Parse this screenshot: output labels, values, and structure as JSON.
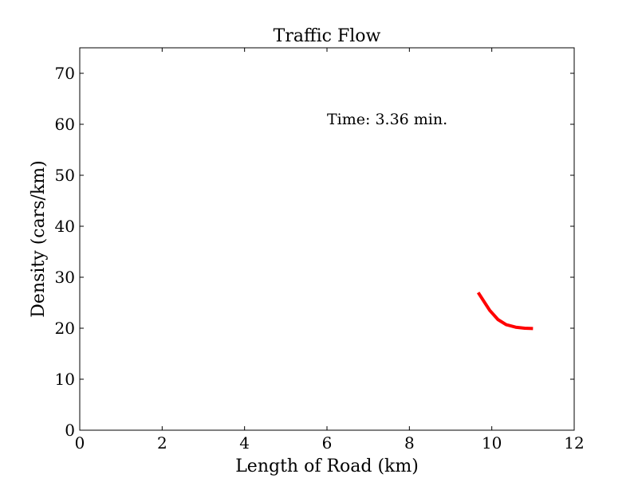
{
  "chart_data": {
    "type": "line",
    "title": "Traffic Flow",
    "xlabel": "Length of Road (km)",
    "ylabel": "Density (cars/km)",
    "xlim": [
      0,
      12
    ],
    "ylim": [
      0,
      75
    ],
    "xticks": [
      0,
      2,
      4,
      6,
      8,
      10,
      12
    ],
    "yticks": [
      0,
      10,
      20,
      30,
      40,
      50,
      60,
      70
    ],
    "grid": false,
    "annotation": {
      "text": "Time: 3.36 min.",
      "x": 6.0,
      "y": 60.0
    },
    "series": [
      {
        "color": "#ff0000",
        "x": [
          9.67,
          9.95,
          10.15,
          10.35,
          10.58,
          10.8,
          11.0
        ],
        "y": [
          27.0,
          23.5,
          21.7,
          20.7,
          20.2,
          20.0,
          19.95
        ]
      }
    ]
  }
}
